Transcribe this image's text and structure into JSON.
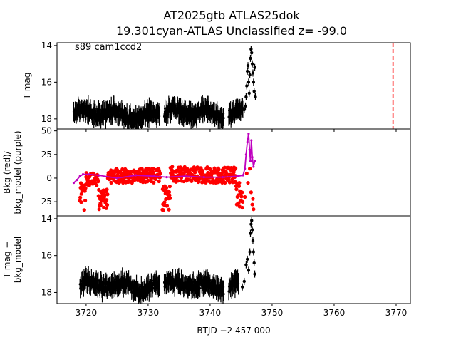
{
  "title_line1": "AT2025gtb  ATLAS25dok",
  "title_line2": "19.301cyan-ATLAS Unclassified z= -99.0",
  "xlabel": "BTJD −2 457 000",
  "colors": {
    "panel1_points": "#000000",
    "bkg_points": "#ff0000",
    "bkg_model": "#bf00bf",
    "panel3_points": "#000000",
    "marker_line": "#ff0000"
  },
  "chart_data": [
    {
      "type": "scatter",
      "panel": "top",
      "ylabel": "T mag",
      "annotation": "s89 cam1ccd2",
      "xlim": [
        3715.3,
        3772.3
      ],
      "ylim": [
        18.55,
        13.85
      ],
      "y_inverted": true,
      "yticks": [
        14,
        16,
        18
      ],
      "xticks": [
        3720,
        3730,
        3740,
        3750,
        3760,
        3770
      ],
      "vertical_line_x": 3769.5,
      "segments": [
        {
          "x_start": 3718.0,
          "x_end": 3731.8,
          "y_center": 17.75,
          "y_spread": 0.55
        },
        {
          "x_start": 3732.6,
          "x_end": 3742.2,
          "y_center": 17.7,
          "y_spread": 0.55
        },
        {
          "x_start": 3743.0,
          "x_end": 3745.3,
          "y_center": 17.8,
          "y_spread": 0.5
        }
      ],
      "rise": [
        {
          "x": 3745.5,
          "y": 17.5
        },
        {
          "x": 3745.7,
          "y": 17.3
        },
        {
          "x": 3745.8,
          "y": 16.8
        },
        {
          "x": 3745.9,
          "y": 16.2
        },
        {
          "x": 3746.0,
          "y": 15.4
        },
        {
          "x": 3746.1,
          "y": 15.1
        },
        {
          "x": 3746.2,
          "y": 16.0
        },
        {
          "x": 3746.3,
          "y": 16.6
        },
        {
          "x": 3746.4,
          "y": 15.6
        },
        {
          "x": 3746.5,
          "y": 14.7
        },
        {
          "x": 3746.6,
          "y": 14.2
        },
        {
          "x": 3746.7,
          "y": 14.4
        },
        {
          "x": 3746.8,
          "y": 15.0
        },
        {
          "x": 3746.9,
          "y": 15.5
        },
        {
          "x": 3747.0,
          "y": 16.0
        },
        {
          "x": 3747.1,
          "y": 16.5
        },
        {
          "x": 3747.2,
          "y": 15.2
        },
        {
          "x": 3747.3,
          "y": 16.8
        }
      ]
    },
    {
      "type": "scatter",
      "panel": "middle",
      "ylabel_line1": "Bkg (red)/",
      "ylabel_line2": "bkg_model (purple)",
      "xlim": [
        3715.3,
        3772.3
      ],
      "ylim": [
        -40,
        52
      ],
      "yticks": [
        -25,
        0,
        25,
        50
      ],
      "bkg_model": [
        {
          "x": 3718.0,
          "y": -5
        },
        {
          "x": 3718.5,
          "y": -2
        },
        {
          "x": 3719.0,
          "y": 2
        },
        {
          "x": 3719.5,
          "y": 4
        },
        {
          "x": 3720.5,
          "y": 4
        },
        {
          "x": 3722.0,
          "y": 3
        },
        {
          "x": 3725.0,
          "y": 0
        },
        {
          "x": 3728.0,
          "y": 3
        },
        {
          "x": 3731.0,
          "y": 2
        },
        {
          "x": 3733.0,
          "y": 1
        },
        {
          "x": 3736.0,
          "y": 2
        },
        {
          "x": 3739.0,
          "y": 1
        },
        {
          "x": 3742.0,
          "y": 1
        },
        {
          "x": 3744.5,
          "y": 2
        },
        {
          "x": 3745.3,
          "y": 3
        },
        {
          "x": 3745.6,
          "y": 10
        },
        {
          "x": 3745.8,
          "y": 25
        },
        {
          "x": 3746.0,
          "y": 38
        },
        {
          "x": 3746.2,
          "y": 47
        },
        {
          "x": 3746.35,
          "y": 30
        },
        {
          "x": 3746.5,
          "y": 18
        },
        {
          "x": 3746.65,
          "y": 40
        },
        {
          "x": 3746.8,
          "y": 22
        },
        {
          "x": 3747.0,
          "y": 12
        },
        {
          "x": 3747.2,
          "y": 18
        }
      ],
      "bkg_segments": [
        {
          "x_start": 3719.0,
          "x_end": 3720.0,
          "y_low": -35,
          "y_high": -5
        },
        {
          "x_start": 3720.0,
          "x_end": 3722.0,
          "y_low": -8,
          "y_high": 6
        },
        {
          "x_start": 3722.0,
          "x_end": 3723.5,
          "y_low": -33,
          "y_high": -10
        },
        {
          "x_start": 3723.5,
          "x_end": 3732.0,
          "y_low": -5,
          "y_high": 10
        },
        {
          "x_start": 3732.3,
          "x_end": 3733.6,
          "y_low": -35,
          "y_high": -8
        },
        {
          "x_start": 3733.6,
          "x_end": 3744.2,
          "y_low": -5,
          "y_high": 12
        },
        {
          "x_start": 3744.2,
          "x_end": 3745.3,
          "y_low": -33,
          "y_high": -5
        }
      ],
      "bkg_tail": [
        {
          "x": 3745.6,
          "y": -20
        },
        {
          "x": 3745.9,
          "y": 5
        },
        {
          "x": 3746.1,
          "y": -5
        },
        {
          "x": 3746.4,
          "y": 10
        },
        {
          "x": 3746.6,
          "y": -15
        },
        {
          "x": 3746.8,
          "y": -28
        },
        {
          "x": 3747.0,
          "y": -33
        },
        {
          "x": 3746.9,
          "y": -22
        }
      ]
    },
    {
      "type": "scatter",
      "panel": "bottom",
      "ylabel_line1": "T mag −",
      "ylabel_line2": "bkg_model",
      "xlim": [
        3715.3,
        3772.3
      ],
      "ylim": [
        18.6,
        13.85
      ],
      "y_inverted": true,
      "yticks": [
        14,
        16,
        18
      ],
      "xticks": [
        3720,
        3730,
        3740,
        3750,
        3760,
        3770
      ],
      "segments": [
        {
          "x_start": 3719.0,
          "x_end": 3731.8,
          "y_center": 17.65,
          "y_spread": 0.55
        },
        {
          "x_start": 3732.6,
          "x_end": 3742.2,
          "y_center": 17.65,
          "y_spread": 0.55
        },
        {
          "x_start": 3743.0,
          "x_end": 3744.6,
          "y_center": 17.7,
          "y_spread": 0.5
        }
      ],
      "rise": [
        {
          "x": 3745.2,
          "y": 17.7
        },
        {
          "x": 3745.5,
          "y": 17.4
        },
        {
          "x": 3745.8,
          "y": 16.5
        },
        {
          "x": 3746.0,
          "y": 16.2
        },
        {
          "x": 3746.2,
          "y": 16.8
        },
        {
          "x": 3746.4,
          "y": 15.8
        },
        {
          "x": 3746.5,
          "y": 14.8
        },
        {
          "x": 3746.6,
          "y": 14.3
        },
        {
          "x": 3746.7,
          "y": 14.1
        },
        {
          "x": 3746.8,
          "y": 14.6
        },
        {
          "x": 3746.9,
          "y": 15.2
        },
        {
          "x": 3747.0,
          "y": 15.8
        },
        {
          "x": 3747.1,
          "y": 16.4
        },
        {
          "x": 3747.2,
          "y": 17.0
        }
      ]
    }
  ]
}
